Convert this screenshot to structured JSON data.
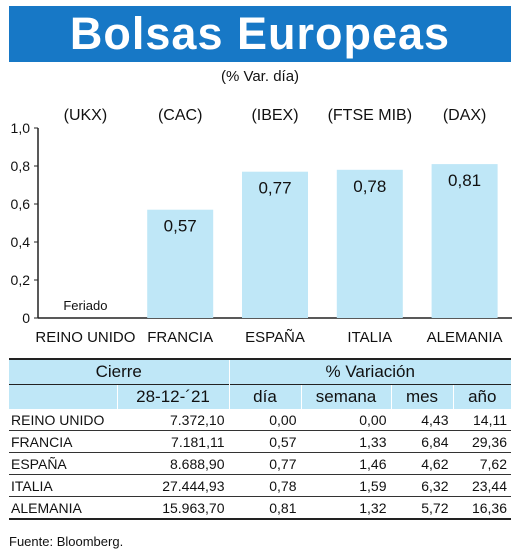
{
  "header": {
    "title": "Bolsas Europeas",
    "subtitle": "(% Var. día)"
  },
  "chart_data": {
    "type": "bar",
    "categories": [
      "REINO UNIDO",
      "FRANCIA",
      "ESPAÑA",
      "ITALIA",
      "ALEMANIA"
    ],
    "indices": [
      "(UKX)",
      "(CAC)",
      "(IBEX)",
      "(FTSE MIB)",
      "(DAX)"
    ],
    "values": [
      null,
      0.57,
      0.77,
      0.78,
      0.81
    ],
    "value_labels": [
      "Feriado",
      "0,57",
      "0,77",
      "0,78",
      "0,81"
    ],
    "ylim": [
      0,
      1.0
    ],
    "yticks": [
      0,
      0.2,
      0.4,
      0.6,
      0.8,
      1.0
    ],
    "ytick_labels": [
      "0",
      "0,2",
      "0,4",
      "0,6",
      "0,8",
      "1,0"
    ],
    "bar_color": "#bfe7f7",
    "grid": false
  },
  "table": {
    "header_cierre": "Cierre",
    "header_variacion": "% Variación",
    "date": "28-12-´21",
    "col_dia": "día",
    "col_semana": "semana",
    "col_mes": "mes",
    "col_ano": "año",
    "rows": [
      {
        "name": "REINO UNIDO",
        "cierre": "7.372,10",
        "dia": "0,00",
        "semana": "0,00",
        "mes": "4,43",
        "ano": "14,11"
      },
      {
        "name": "FRANCIA",
        "cierre": "7.181,11",
        "dia": "0,57",
        "semana": "1,33",
        "mes": "6,84",
        "ano": "29,36"
      },
      {
        "name": "ESPAÑA",
        "cierre": "8.688,90",
        "dia": "0,77",
        "semana": "1,46",
        "mes": "4,62",
        "ano": "7,62"
      },
      {
        "name": "ITALIA",
        "cierre": "27.444,93",
        "dia": "0,78",
        "semana": "1,59",
        "mes": "6,32",
        "ano": "23,44"
      },
      {
        "name": "ALEMANIA",
        "cierre": "15.963,70",
        "dia": "0,81",
        "semana": "1,32",
        "mes": "5,72",
        "ano": "16,36"
      }
    ]
  },
  "source": "Fuente: Bloomberg.",
  "colors": {
    "banner": "#1778c6",
    "bar": "#bfe7f7",
    "table_header": "#bfe7f7"
  }
}
